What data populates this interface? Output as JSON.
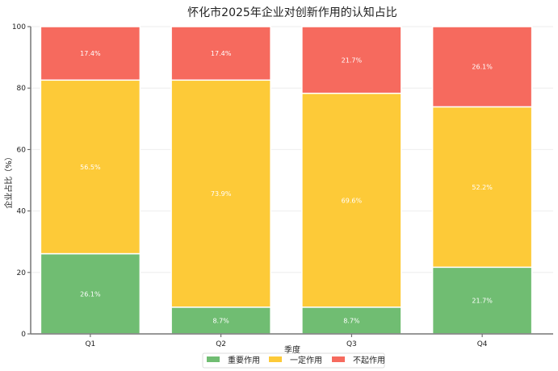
{
  "chart_data": {
    "type": "bar",
    "stacked": true,
    "title": "怀化市2025年企业对创新作用的认知占比",
    "xlabel": "季度",
    "ylabel": "企业占比（%）",
    "categories": [
      "Q1",
      "Q2",
      "Q3",
      "Q4"
    ],
    "ylim": [
      0,
      100
    ],
    "yticks": [
      0,
      20,
      40,
      60,
      80,
      100
    ],
    "grid": true,
    "legend_position": "bottom-center",
    "series": [
      {
        "name": "重要作用",
        "color": "#70bd72",
        "values": [
          26.1,
          8.7,
          8.7,
          21.7
        ],
        "labels": [
          "26.1%",
          "8.7%",
          "8.7%",
          "21.7%"
        ]
      },
      {
        "name": "一定作用",
        "color": "#fdca38",
        "values": [
          56.5,
          73.9,
          69.6,
          52.2
        ],
        "labels": [
          "56.5%",
          "73.9%",
          "69.6%",
          "52.2%"
        ]
      },
      {
        "name": "不起作用",
        "color": "#f66a5e",
        "values": [
          17.4,
          17.4,
          21.7,
          26.1
        ],
        "labels": [
          "17.4%",
          "17.4%",
          "21.7%",
          "26.1%"
        ]
      }
    ]
  }
}
